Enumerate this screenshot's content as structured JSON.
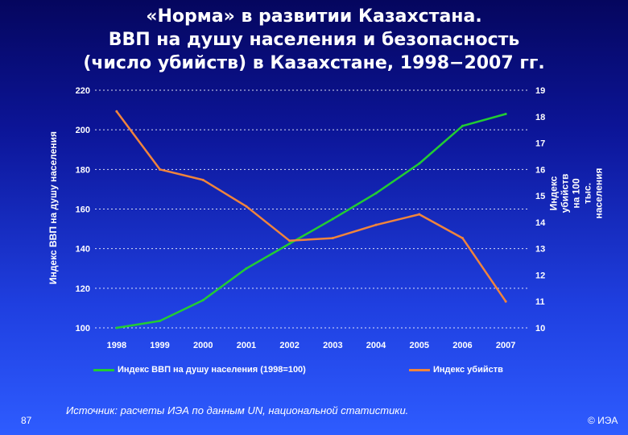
{
  "slide": {
    "title_lines": [
      "«Норма» в развитии Казахстана.",
      "ВВП на душу населения и безопасность",
      "(число убийств) в Казахстане, 1998−2007 гг."
    ],
    "source": "Источник: расчеты ИЭА по данным UN, национальной статистики.",
    "page_number": "87",
    "copyright": "© ИЭА"
  },
  "chart_data": {
    "type": "line",
    "x": [
      "1998",
      "1999",
      "2000",
      "2001",
      "2002",
      "2003",
      "2004",
      "2005",
      "2006",
      "2007"
    ],
    "series": [
      {
        "name": "Индекс ВВП на душу населения (1998=100)",
        "axis": "left",
        "color": "#22cc33",
        "values": [
          100,
          103.5,
          114,
          130,
          142.5,
          155,
          168,
          183,
          202,
          208
        ]
      },
      {
        "name": "Индекс убийств",
        "axis": "right",
        "color": "#f0843c",
        "values": [
          18.2,
          16,
          15.6,
          14.6,
          13.3,
          13.4,
          13.9,
          14.3,
          13.4,
          11
        ]
      }
    ],
    "y_left": {
      "label": "Индекс ВВП на душу населения",
      "range": [
        100,
        220
      ],
      "ticks": [
        "100",
        "120",
        "140",
        "160",
        "180",
        "200",
        "220"
      ]
    },
    "y_right": {
      "label": "Индекс убийств на 100 тыс. населения",
      "range": [
        10,
        19
      ],
      "ticks": [
        "10",
        "11",
        "12",
        "13",
        "14",
        "15",
        "16",
        "17",
        "18",
        "19"
      ]
    },
    "grid": "horizontal-dashed",
    "legend_position": "bottom"
  }
}
